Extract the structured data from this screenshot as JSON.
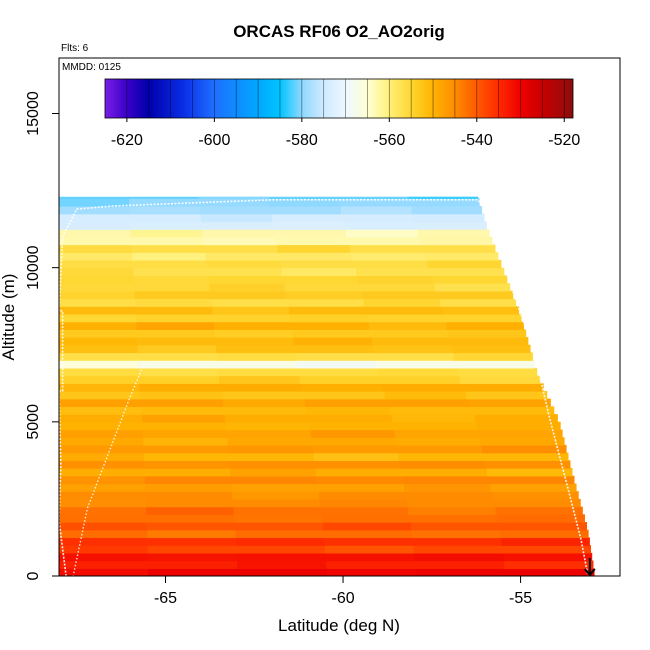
{
  "chart_data": {
    "type": "heatmap",
    "title": "ORCAS RF06 O2_AO2orig",
    "subtitle_flights": "Flts: 6",
    "subtitle_date": "MMDD: 0125",
    "xlabel": "Latitude (deg N)",
    "ylabel": "Altitude (m)",
    "xlim": [
      -68,
      -52.2
    ],
    "ylim": [
      0,
      16800
    ],
    "x_ticks": [
      -65,
      -60,
      -55
    ],
    "x_tick_labels": [
      "-65",
      "-60",
      "-55"
    ],
    "y_ticks": [
      0,
      5000,
      10000,
      15000
    ],
    "y_tick_labels": [
      "0",
      "5000",
      "10000",
      "15000"
    ],
    "colorbar": {
      "min": -625,
      "max": -518,
      "ticks": [
        -620,
        -600,
        -580,
        -560,
        -540,
        -520
      ],
      "tick_labels": [
        "-620",
        "-600",
        "-580",
        "-560",
        "-540",
        "-520"
      ],
      "color_stops": [
        {
          "value": -625,
          "color": "#7a1fe6"
        },
        {
          "value": -620,
          "color": "#3a00c8"
        },
        {
          "value": -615,
          "color": "#0000aa"
        },
        {
          "value": -607,
          "color": "#0a2ee6"
        },
        {
          "value": -600,
          "color": "#1f6fff"
        },
        {
          "value": -590,
          "color": "#00a8ff"
        },
        {
          "value": -585,
          "color": "#00c4ff"
        },
        {
          "value": -580,
          "color": "#8fd8ff"
        },
        {
          "value": -575,
          "color": "#cfeaff"
        },
        {
          "value": -570,
          "color": "#eef8ff"
        },
        {
          "value": -565,
          "color": "#ffffd4"
        },
        {
          "value": -560,
          "color": "#fff07a"
        },
        {
          "value": -555,
          "color": "#ffd630"
        },
        {
          "value": -550,
          "color": "#ffb300"
        },
        {
          "value": -545,
          "color": "#ff8c00"
        },
        {
          "value": -540,
          "color": "#ff5a00"
        },
        {
          "value": -535,
          "color": "#ff2a00"
        },
        {
          "value": -530,
          "color": "#ee0000"
        },
        {
          "value": -525,
          "color": "#c80000"
        },
        {
          "value": -518,
          "color": "#8b0d0d"
        }
      ]
    },
    "field_profile": [
      {
        "alt": 0,
        "value": -529
      },
      {
        "alt": 500,
        "value": -534
      },
      {
        "alt": 1000,
        "value": -537
      },
      {
        "alt": 1600,
        "value": -541
      },
      {
        "alt": 2300,
        "value": -544
      },
      {
        "alt": 3000,
        "value": -547
      },
      {
        "alt": 3800,
        "value": -548
      },
      {
        "alt": 4600,
        "value": -549
      },
      {
        "alt": 5500,
        "value": -550
      },
      {
        "alt": 6500,
        "value": -552
      },
      {
        "alt": 6850,
        "value": -568
      },
      {
        "alt": 7300,
        "value": -551
      },
      {
        "alt": 8500,
        "value": -553
      },
      {
        "alt": 9500,
        "value": -556
      },
      {
        "alt": 10300,
        "value": -557
      },
      {
        "alt": 11000,
        "value": -562
      },
      {
        "alt": 11500,
        "value": -574
      },
      {
        "alt": 12000,
        "value": -580
      },
      {
        "alt": 12300,
        "value": -581
      }
    ],
    "data_extent": {
      "top_alt": 12300,
      "edge": [
        {
          "alt": 0,
          "lat": -52.9
        },
        {
          "alt": 1500,
          "lat": -53.1
        },
        {
          "alt": 3200,
          "lat": -53.5
        },
        {
          "alt": 5000,
          "lat": -53.9
        },
        {
          "alt": 6500,
          "lat": -54.5
        },
        {
          "alt": 8500,
          "lat": -55.0
        },
        {
          "alt": 10000,
          "lat": -55.5
        },
        {
          "alt": 11200,
          "lat": -55.9
        },
        {
          "alt": 12300,
          "lat": -56.2
        }
      ]
    },
    "flight_track": [
      {
        "lat": -67.8,
        "alt": 0
      },
      {
        "lat": -68.0,
        "alt": 1800
      },
      {
        "lat": -67.95,
        "alt": 3600
      },
      {
        "lat": -68.0,
        "alt": 6000
      },
      {
        "lat": -67.9,
        "alt": 6000
      },
      {
        "lat": -67.9,
        "alt": 8600
      },
      {
        "lat": -68.0,
        "alt": 8600
      },
      {
        "lat": -67.9,
        "alt": 11000
      },
      {
        "lat": -67.5,
        "alt": 11900
      },
      {
        "lat": -66.5,
        "alt": 12000
      },
      {
        "lat": -62.0,
        "alt": 12200
      },
      {
        "lat": -58.0,
        "alt": 12200
      },
      {
        "lat": -56.2,
        "alt": 12200
      },
      {
        "lat": -55.8,
        "alt": 11500
      },
      {
        "lat": -55.3,
        "alt": 9500
      },
      {
        "lat": -54.6,
        "alt": 7200
      },
      {
        "lat": -54.2,
        "alt": 5200
      },
      {
        "lat": -53.7,
        "alt": 3000
      },
      {
        "lat": -53.3,
        "alt": 1200
      },
      {
        "lat": -53.1,
        "alt": 0
      }
    ],
    "descent_track": [
      {
        "lat": -65.6,
        "alt": 6900
      },
      {
        "lat": -66.0,
        "alt": 5800
      },
      {
        "lat": -66.6,
        "alt": 4000
      },
      {
        "lat": -67.2,
        "alt": 2200
      },
      {
        "lat": -67.6,
        "alt": 0
      }
    ],
    "end_marker": {
      "lat": -53.05,
      "alt": 0,
      "symbol": "arrow-down"
    }
  }
}
